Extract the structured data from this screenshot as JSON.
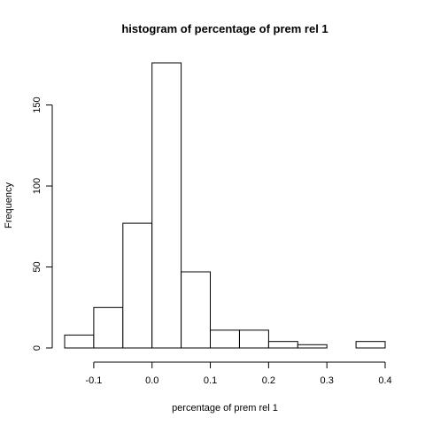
{
  "chart_data": {
    "type": "bar",
    "title": "histogram of percentage of prem rel 1",
    "xlabel": "percentage of prem rel 1",
    "ylabel": "Frequency",
    "bins": [
      {
        "start": -0.15,
        "end": -0.1,
        "count": 8
      },
      {
        "start": -0.1,
        "end": -0.05,
        "count": 25
      },
      {
        "start": -0.05,
        "end": 0.0,
        "count": 77
      },
      {
        "start": 0.0,
        "end": 0.05,
        "count": 176
      },
      {
        "start": 0.05,
        "end": 0.1,
        "count": 47
      },
      {
        "start": 0.1,
        "end": 0.15,
        "count": 11
      },
      {
        "start": 0.15,
        "end": 0.2,
        "count": 11
      },
      {
        "start": 0.2,
        "end": 0.25,
        "count": 4
      },
      {
        "start": 0.25,
        "end": 0.3,
        "count": 2
      },
      {
        "start": 0.3,
        "end": 0.35,
        "count": 0
      },
      {
        "start": 0.35,
        "end": 0.4,
        "count": 4
      }
    ],
    "x_ticks": [
      {
        "value": -0.1,
        "label": "-0.1"
      },
      {
        "value": 0.0,
        "label": "0.0"
      },
      {
        "value": 0.1,
        "label": "0.1"
      },
      {
        "value": 0.2,
        "label": "0.2"
      },
      {
        "value": 0.3,
        "label": "0.3"
      },
      {
        "value": 0.4,
        "label": "0.4"
      }
    ],
    "y_ticks": [
      {
        "value": 0,
        "label": "0"
      },
      {
        "value": 50,
        "label": "50"
      },
      {
        "value": 100,
        "label": "100"
      },
      {
        "value": 150,
        "label": "150"
      }
    ],
    "xlim": [
      -0.15,
      0.4
    ],
    "ylim": [
      0,
      176
    ],
    "grid": false
  }
}
